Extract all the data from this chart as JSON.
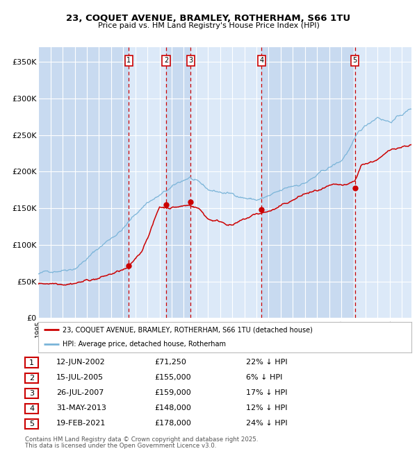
{
  "title_line1": "23, COQUET AVENUE, BRAMLEY, ROTHERHAM, S66 1TU",
  "title_line2": "Price paid vs. HM Land Registry's House Price Index (HPI)",
  "ylabel_ticks": [
    "£0",
    "£50K",
    "£100K",
    "£150K",
    "£200K",
    "£250K",
    "£300K",
    "£350K"
  ],
  "ytick_values": [
    0,
    50000,
    100000,
    150000,
    200000,
    250000,
    300000,
    350000
  ],
  "ylim": [
    0,
    370000
  ],
  "xlim_start": 1995.0,
  "xlim_end": 2025.8,
  "background_color": "#cfe0f0",
  "band_color_light": "#dce9f8",
  "band_color_dark": "#c8daf0",
  "figure_bg_color": "#ffffff",
  "hpi_color": "#7ab4d8",
  "price_color": "#cc0000",
  "vline_color": "#cc0000",
  "grid_color": "#ffffff",
  "sale_points": [
    {
      "label": "1",
      "date_year": 2002.45,
      "price": 71250
    },
    {
      "label": "2",
      "date_year": 2005.54,
      "price": 155000
    },
    {
      "label": "3",
      "date_year": 2007.57,
      "price": 159000
    },
    {
      "label": "4",
      "date_year": 2013.42,
      "price": 148000
    },
    {
      "label": "5",
      "date_year": 2021.13,
      "price": 178000
    }
  ],
  "legend_line1": "23, COQUET AVENUE, BRAMLEY, ROTHERHAM, S66 1TU (detached house)",
  "legend_line2": "HPI: Average price, detached house, Rotherham",
  "table_rows": [
    {
      "num": "1",
      "date": "12-JUN-2002",
      "price": "£71,250",
      "note": "22% ↓ HPI"
    },
    {
      "num": "2",
      "date": "15-JUL-2005",
      "price": "£155,000",
      "note": "6% ↓ HPI"
    },
    {
      "num": "3",
      "date": "26-JUL-2007",
      "price": "£159,000",
      "note": "17% ↓ HPI"
    },
    {
      "num": "4",
      "date": "31-MAY-2013",
      "price": "£148,000",
      "note": "12% ↓ HPI"
    },
    {
      "num": "5",
      "date": "19-FEB-2021",
      "price": "£178,000",
      "note": "24% ↓ HPI"
    }
  ],
  "footnote_line1": "Contains HM Land Registry data © Crown copyright and database right 2025.",
  "footnote_line2": "This data is licensed under the Open Government Licence v3.0."
}
